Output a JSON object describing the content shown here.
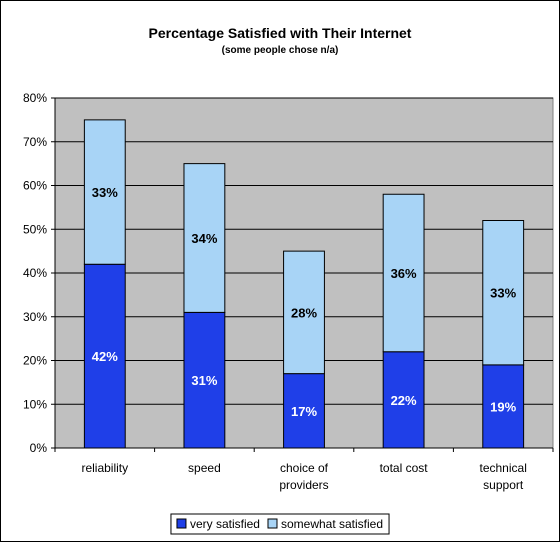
{
  "chart_data": {
    "type": "bar",
    "stacked": true,
    "title": "Percentage Satisfied with Their Internet",
    "subtitle": "(some people chose n/a)",
    "xlabel": "",
    "ylabel": "",
    "ylim": [
      0,
      80
    ],
    "yticks": [
      "0%",
      "10%",
      "20%",
      "30%",
      "40%",
      "50%",
      "60%",
      "70%",
      "80%"
    ],
    "categories": [
      [
        "reliability"
      ],
      [
        "speed"
      ],
      [
        "choice of",
        "providers"
      ],
      [
        "total cost"
      ],
      [
        "technical",
        "support"
      ]
    ],
    "series": [
      {
        "name": "very satisfied",
        "color": "#1f3fe8",
        "label_color": "#ffffff",
        "values": [
          42,
          31,
          17,
          22,
          19
        ],
        "labels": [
          "42%",
          "31%",
          "17%",
          "22%",
          "19%"
        ]
      },
      {
        "name": "somewhat satisfied",
        "color": "#a8d4f6",
        "label_color": "#000000",
        "values": [
          33,
          34,
          28,
          36,
          33
        ],
        "labels": [
          "33%",
          "34%",
          "28%",
          "36%",
          "33%"
        ]
      }
    ],
    "grid": true,
    "plot_background": "#c0c0c0",
    "legend_position": "bottom"
  }
}
